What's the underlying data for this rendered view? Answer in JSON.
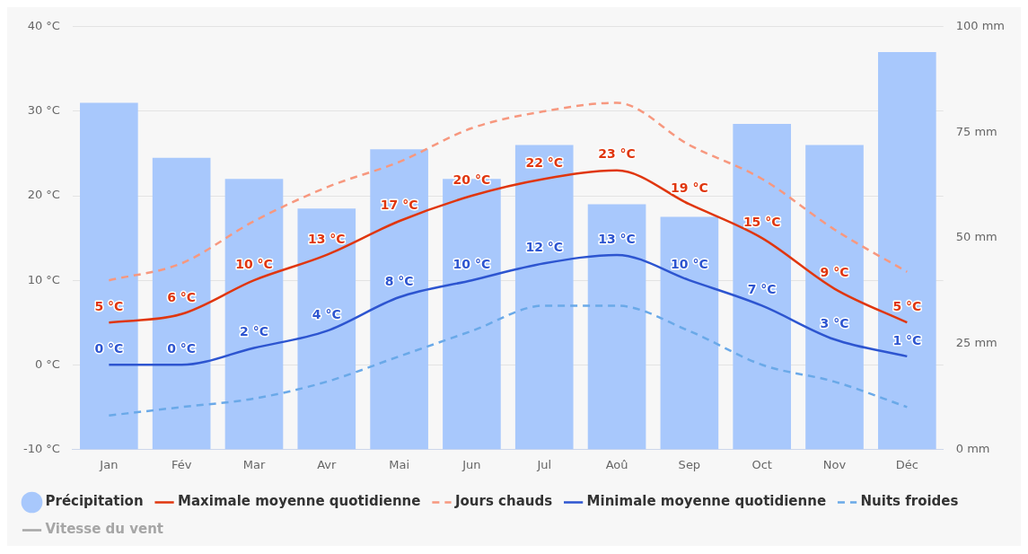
{
  "chart_data": {
    "type": "bar",
    "categories": [
      "Jan",
      "Fév",
      "Mar",
      "Avr",
      "Mai",
      "Jun",
      "Jul",
      "Aoû",
      "Sep",
      "Oct",
      "Nov",
      "Déc"
    ],
    "series": [
      {
        "name": "Précipitation",
        "axis": "y2",
        "color": "#a8c8fc",
        "values": [
          82,
          69,
          64,
          57,
          71,
          64,
          72,
          58,
          55,
          77,
          72,
          94
        ]
      },
      {
        "name": "Maximale moyenne quotidienne",
        "type": "line",
        "line_style": "solid",
        "color": "#e0360e",
        "values": [
          5,
          6,
          10,
          13,
          17,
          20,
          22,
          23,
          19,
          15,
          9,
          5
        ],
        "value_labels": [
          "5 °C",
          "6 °C",
          "10 °C",
          "13 °C",
          "17 °C",
          "20 °C",
          "22 °C",
          "23 °C",
          "19 °C",
          "15 °C",
          "9 °C",
          "5 °C"
        ]
      },
      {
        "name": "Jours chauds",
        "type": "line",
        "line_style": "dashed",
        "color": "#f7987f",
        "values": [
          10,
          12,
          17,
          21,
          24,
          28,
          30,
          31,
          26,
          22,
          16,
          11
        ]
      },
      {
        "name": "Minimale moyenne quotidienne",
        "type": "line",
        "line_style": "solid",
        "color": "#2d55d0",
        "values": [
          0,
          0,
          2,
          4,
          8,
          10,
          12,
          13,
          10,
          7,
          3,
          1
        ],
        "value_labels": [
          "0 °C",
          "0 °C",
          "2 °C",
          "4 °C",
          "8 °C",
          "10 °C",
          "12 °C",
          "13 °C",
          "10 °C",
          "7 °C",
          "3 °C",
          "1 °C"
        ]
      },
      {
        "name": "Nuits froides",
        "type": "line",
        "line_style": "dashed",
        "color": "#6aa9e8",
        "values": [
          -6,
          -5,
          -4,
          -2,
          1,
          4,
          7,
          7,
          4,
          0,
          -2,
          -5
        ]
      },
      {
        "name": "Vitesse du vent",
        "type": "line",
        "line_style": "solid",
        "color": "#a6a6a6",
        "values": [
          null,
          null,
          null,
          null,
          null,
          null,
          null,
          null,
          null,
          null,
          null,
          null
        ]
      }
    ],
    "ylim": [
      -10,
      40
    ],
    "yticks": [
      {
        "value": -10,
        "label": "-10 °C"
      },
      {
        "value": 0,
        "label": "0 °C"
      },
      {
        "value": 10,
        "label": "10 °C"
      },
      {
        "value": 20,
        "label": "20 °C"
      },
      {
        "value": 30,
        "label": "30 °C"
      },
      {
        "value": 40,
        "label": "40 °C"
      }
    ],
    "y2lim": [
      0,
      100
    ],
    "y2ticks": [
      {
        "value": 0,
        "label": "0 mm"
      },
      {
        "value": 25,
        "label": "25 mm"
      },
      {
        "value": 50,
        "label": "50 mm"
      },
      {
        "value": 75,
        "label": "75 mm"
      },
      {
        "value": 100,
        "label": "100 mm"
      }
    ],
    "grid": "y",
    "legend": "bottom left"
  }
}
